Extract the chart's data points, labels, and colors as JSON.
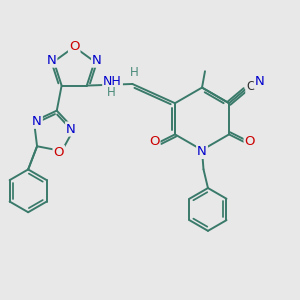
{
  "bg_color": "#e8e8e8",
  "bond_color": "#3a7a6a",
  "bond_width": 1.4,
  "atom_colors": {
    "C": "#333333",
    "N": "#0000cc",
    "O": "#cc0000",
    "H": "#4a8a7a"
  },
  "font_size": 8.5,
  "fig_size": [
    3.0,
    3.0
  ],
  "dpi": 100
}
